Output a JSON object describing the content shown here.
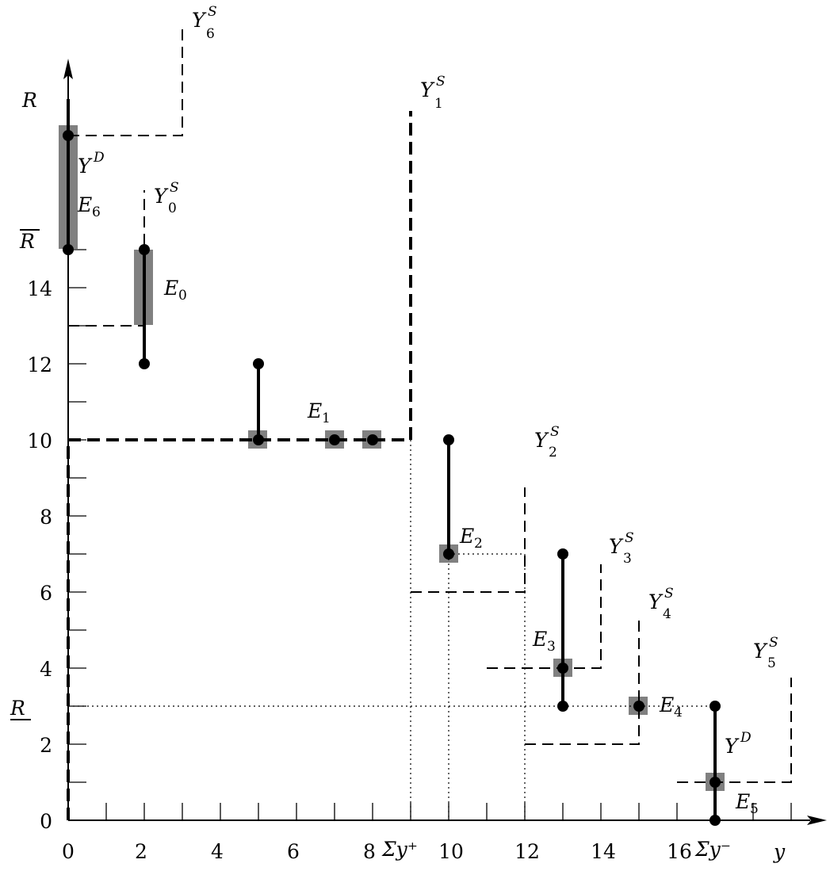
{
  "diagram": {
    "x_ticks": [
      "0",
      "2",
      "4",
      "6",
      "8",
      "10",
      "12",
      "14",
      "16"
    ],
    "y_ticks": [
      "0",
      "2",
      "4",
      "6",
      "8",
      "10",
      "12",
      "14"
    ],
    "x_axis_label": "y",
    "y_axis_label": "R",
    "r_bar_label": "R",
    "r_under_label": "R",
    "sum_plus_label": "Σy⁺",
    "sum_minus_label": "Σy⁻",
    "equilibria": [
      "E",
      "E",
      "E",
      "E",
      "E",
      "E",
      "E"
    ],
    "equilibria_subscripts": [
      "0",
      "1",
      "2",
      "3",
      "4",
      "5",
      "6"
    ],
    "supply_labels": [
      "Y",
      "Y",
      "Y",
      "Y",
      "Y",
      "Y",
      "Y"
    ],
    "supply_subscripts": [
      "0",
      "1",
      "2",
      "3",
      "4",
      "5",
      "6"
    ],
    "supply_superscript": "S",
    "demand_label": "Y",
    "demand_superscript": "D"
  }
}
